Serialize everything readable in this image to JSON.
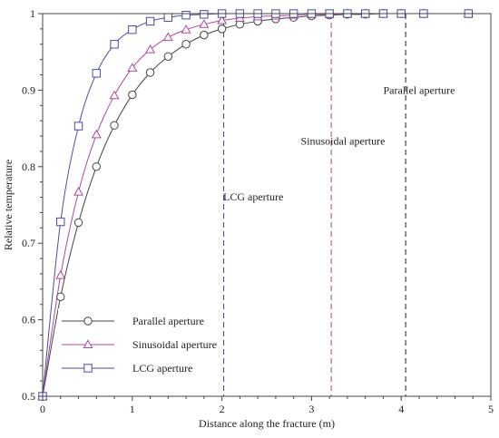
{
  "chart_data": {
    "type": "line",
    "xlabel": "Distance along the fracture (m)",
    "ylabel": "Relative temperature",
    "xlim": [
      0,
      5
    ],
    "ylim": [
      0.5,
      1
    ],
    "x_ticks": [
      0,
      1,
      2,
      3,
      4,
      5
    ],
    "y_ticks": [
      0.5,
      0.6,
      0.7,
      0.8,
      0.9,
      1
    ],
    "x_tick_labels": [
      "0",
      "1",
      "2",
      "3",
      "4",
      "5"
    ],
    "y_tick_labels": [
      "0.5",
      "0.6",
      "0.7",
      "0.8",
      "0.9",
      "1"
    ],
    "grid": false,
    "legend_position": "bottom-left",
    "series": [
      {
        "name": "Parallel aperture",
        "color": "#444444",
        "marker": "circle",
        "x": [
          0,
          0.2,
          0.4,
          0.6,
          0.8,
          1.0,
          1.2,
          1.4,
          1.6,
          1.8,
          2.0,
          2.2,
          2.4,
          2.6,
          2.8,
          3.0,
          3.2,
          3.4,
          3.6,
          3.8,
          4.0,
          4.25,
          4.75
        ],
        "y": [
          0.5,
          0.63,
          0.727,
          0.8,
          0.854,
          0.894,
          0.923,
          0.944,
          0.96,
          0.972,
          0.98,
          0.986,
          0.99,
          0.993,
          0.995,
          0.997,
          0.998,
          0.999,
          0.999,
          1.0,
          1.0,
          1.0,
          1.0
        ]
      },
      {
        "name": "Sinusoidal aperture",
        "color": "#b0489a",
        "marker": "triangle",
        "x": [
          0,
          0.2,
          0.4,
          0.6,
          0.8,
          1.0,
          1.2,
          1.4,
          1.6,
          1.8,
          2.0,
          2.2,
          2.4,
          2.6,
          2.8,
          3.0,
          3.2,
          3.4,
          3.6,
          3.8,
          4.0,
          4.25,
          4.75
        ],
        "y": [
          0.5,
          0.658,
          0.767,
          0.842,
          0.893,
          0.929,
          0.953,
          0.969,
          0.979,
          0.986,
          0.991,
          0.994,
          0.996,
          0.997,
          0.998,
          0.999,
          0.999,
          1.0,
          1.0,
          1.0,
          1.0,
          1.0,
          1.0
        ]
      },
      {
        "name": "LCG aperture",
        "color": "#4a4aa8",
        "marker": "square",
        "x": [
          0,
          0.2,
          0.4,
          0.6,
          0.8,
          1.0,
          1.2,
          1.4,
          1.6,
          1.8,
          2.0,
          2.2,
          2.4,
          2.6,
          2.8,
          3.0,
          3.2,
          3.4,
          3.6,
          3.8,
          4.0,
          4.25,
          4.75
        ],
        "y": [
          0.5,
          0.728,
          0.853,
          0.922,
          0.96,
          0.979,
          0.99,
          0.995,
          0.998,
          0.999,
          1.0,
          1.0,
          1.0,
          1.0,
          1.0,
          1.0,
          1.0,
          1.0,
          1.0,
          1.0,
          1.0,
          1.0,
          1.0
        ]
      }
    ],
    "vlines": [
      {
        "x": 2.02,
        "color": "#3a3a9a",
        "label": "LCG aperture",
        "label_x": 2.35,
        "label_y": 0.756,
        "label_anchor": "middle"
      },
      {
        "x": 3.22,
        "color": "#a0409a",
        "label": "Sinusoidal aperture",
        "label_x": 3.35,
        "label_y": 0.829,
        "label_anchor": "middle"
      },
      {
        "x": 4.05,
        "color": "#222222",
        "label": "Parallel aperture",
        "label_x": 4.2,
        "label_y": 0.895,
        "label_anchor": "middle"
      }
    ]
  }
}
